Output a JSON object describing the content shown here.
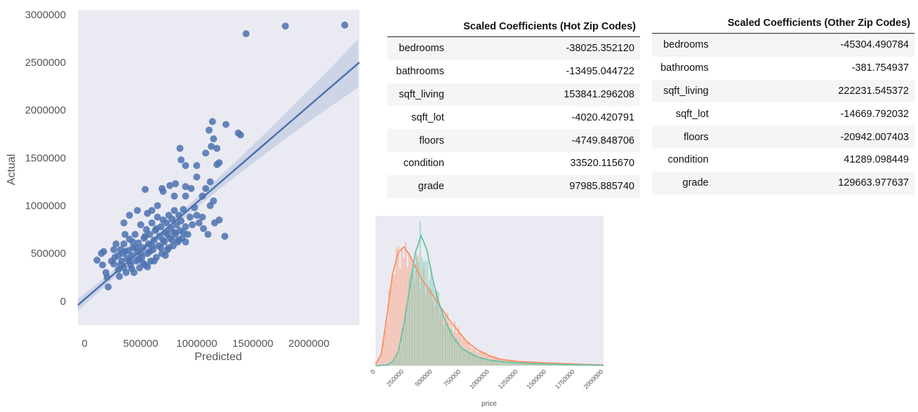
{
  "chart_data": [
    {
      "type": "scatter",
      "xlabel": "Predicted",
      "ylabel": "Actual",
      "xlim": [
        -60000,
        2450000
      ],
      "ylim": [
        -250000,
        3050000
      ],
      "xticks": [
        "0",
        "500000",
        "1000000",
        "1500000",
        "2000000"
      ],
      "yticks": [
        "0",
        "500000",
        "1000000",
        "1500000",
        "2000000",
        "2500000",
        "3000000"
      ],
      "xtick_values": [
        0,
        500000,
        1000000,
        1500000,
        2000000
      ],
      "ytick_values": [
        0,
        500000,
        1000000,
        1500000,
        2000000,
        2500000,
        3000000
      ],
      "regression_line": {
        "x": [
          -60000,
          2450000
        ],
        "y": [
          -40000,
          2500000
        ]
      },
      "points": [
        [
          1440000,
          2800000
        ],
        [
          1790000,
          2880000
        ],
        [
          2320000,
          2890000
        ],
        [
          1140000,
          1880000
        ],
        [
          1260000,
          1850000
        ],
        [
          1370000,
          1760000
        ],
        [
          1390000,
          1740000
        ],
        [
          1110000,
          1790000
        ],
        [
          1150000,
          1700000
        ],
        [
          1180000,
          1600000
        ],
        [
          1130000,
          1620000
        ],
        [
          1180000,
          1430000
        ],
        [
          1200000,
          1450000
        ],
        [
          1000000,
          1420000
        ],
        [
          850000,
          1600000
        ],
        [
          860000,
          1480000
        ],
        [
          1080000,
          1550000
        ],
        [
          900000,
          1420000
        ],
        [
          1000000,
          1300000
        ],
        [
          900000,
          1200000
        ],
        [
          1120000,
          1250000
        ],
        [
          950000,
          1180000
        ],
        [
          1080000,
          1180000
        ],
        [
          540000,
          1170000
        ],
        [
          690000,
          1180000
        ],
        [
          760000,
          1210000
        ],
        [
          810000,
          1230000
        ],
        [
          1050000,
          1100000
        ],
        [
          1150000,
          1050000
        ],
        [
          1200000,
          850000
        ],
        [
          1050000,
          880000
        ],
        [
          900000,
          1100000
        ],
        [
          800000,
          1100000
        ],
        [
          700000,
          1150000
        ],
        [
          650000,
          1000000
        ],
        [
          470000,
          950000
        ],
        [
          400000,
          900000
        ],
        [
          350000,
          820000
        ],
        [
          560000,
          920000
        ],
        [
          600000,
          950000
        ],
        [
          110000,
          430000
        ],
        [
          160000,
          380000
        ],
        [
          150000,
          500000
        ],
        [
          170000,
          520000
        ],
        [
          190000,
          300000
        ],
        [
          200000,
          250000
        ],
        [
          210000,
          150000
        ],
        [
          260000,
          390000
        ],
        [
          260000,
          540000
        ],
        [
          280000,
          600000
        ],
        [
          300000,
          330000
        ],
        [
          310000,
          260000
        ],
        [
          330000,
          420000
        ],
        [
          340000,
          500000
        ],
        [
          350000,
          600000
        ],
        [
          360000,
          700000
        ],
        [
          370000,
          300000
        ],
        [
          380000,
          450000
        ],
        [
          390000,
          530000
        ],
        [
          400000,
          650000
        ],
        [
          410000,
          380000
        ],
        [
          420000,
          480000
        ],
        [
          430000,
          560000
        ],
        [
          440000,
          300000
        ],
        [
          450000,
          700000
        ],
        [
          460000,
          420000
        ],
        [
          470000,
          520000
        ],
        [
          480000,
          610000
        ],
        [
          490000,
          350000
        ],
        [
          500000,
          800000
        ],
        [
          510000,
          460000
        ],
        [
          520000,
          560000
        ],
        [
          530000,
          660000
        ],
        [
          540000,
          380000
        ],
        [
          550000,
          750000
        ],
        [
          560000,
          500000
        ],
        [
          570000,
          600000
        ],
        [
          580000,
          700000
        ],
        [
          590000,
          420000
        ],
        [
          600000,
          820000
        ],
        [
          610000,
          540000
        ],
        [
          620000,
          640000
        ],
        [
          630000,
          740000
        ],
        [
          640000,
          460000
        ],
        [
          650000,
          880000
        ],
        [
          660000,
          580000
        ],
        [
          670000,
          680000
        ],
        [
          680000,
          780000
        ],
        [
          690000,
          500000
        ],
        [
          700000,
          850000
        ],
        [
          710000,
          620000
        ],
        [
          720000,
          720000
        ],
        [
          730000,
          820000
        ],
        [
          740000,
          540000
        ],
        [
          750000,
          900000
        ],
        [
          760000,
          660000
        ],
        [
          770000,
          760000
        ],
        [
          780000,
          860000
        ],
        [
          790000,
          580000
        ],
        [
          800000,
          950000
        ],
        [
          810000,
          700000
        ],
        [
          820000,
          800000
        ],
        [
          830000,
          620000
        ],
        [
          840000,
          900000
        ],
        [
          850000,
          740000
        ],
        [
          860000,
          840000
        ],
        [
          870000,
          660000
        ],
        [
          880000,
          960000
        ],
        [
          900000,
          780000
        ],
        [
          920000,
          700000
        ],
        [
          940000,
          880000
        ],
        [
          960000,
          800000
        ],
        [
          980000,
          980000
        ],
        [
          1000000,
          900000
        ],
        [
          1020000,
          820000
        ],
        [
          1060000,
          760000
        ],
        [
          1100000,
          700000
        ],
        [
          1120000,
          1000000
        ],
        [
          1160000,
          820000
        ],
        [
          1250000,
          680000
        ],
        [
          300000,
          480000
        ],
        [
          320000,
          380000
        ],
        [
          350000,
          350000
        ],
        [
          420000,
          340000
        ],
        [
          520000,
          400000
        ],
        [
          620000,
          420000
        ],
        [
          720000,
          480000
        ],
        [
          430000,
          620000
        ],
        [
          360000,
          520000
        ],
        [
          480000,
          440000
        ],
        [
          580000,
          520000
        ],
        [
          680000,
          560000
        ],
        [
          780000,
          640000
        ],
        [
          880000,
          720000
        ],
        [
          560000,
          360000
        ],
        [
          460000,
          560000
        ],
        [
          540000,
          680000
        ],
        [
          640000,
          760000
        ],
        [
          740000,
          700000
        ],
        [
          840000,
          640000
        ],
        [
          270000,
          460000
        ],
        [
          240000,
          420000
        ],
        [
          320000,
          540000
        ],
        [
          400000,
          420000
        ],
        [
          500000,
          500000
        ],
        [
          600000,
          580000
        ],
        [
          700000,
          640000
        ],
        [
          800000,
          720000
        ],
        [
          900000,
          620000
        ],
        [
          750000,
          560000
        ]
      ]
    },
    {
      "type": "area",
      "xlabel": "price",
      "xlim": [
        0,
        2000000
      ],
      "xticks": [
        "0",
        "250000",
        "500000",
        "750000",
        "1000000",
        "1250000",
        "1500000",
        "1750000",
        "2000000"
      ],
      "xtick_values": [
        0,
        250000,
        500000,
        750000,
        1000000,
        1250000,
        1500000,
        1750000,
        2000000
      ],
      "series": [
        {
          "color": "#fc8d62",
          "kde_x": [
            0,
            50000,
            100000,
            150000,
            200000,
            250000,
            300000,
            350000,
            400000,
            450000,
            500000,
            550000,
            600000,
            650000,
            700000,
            750000,
            800000,
            900000,
            1000000,
            1100000,
            1250000,
            1500000,
            1750000,
            2000000
          ],
          "kde_y": [
            0.01,
            0.08,
            0.35,
            0.65,
            0.8,
            0.84,
            0.78,
            0.7,
            0.62,
            0.56,
            0.5,
            0.44,
            0.38,
            0.32,
            0.27,
            0.22,
            0.17,
            0.11,
            0.07,
            0.045,
            0.03,
            0.02,
            0.012,
            0.005
          ]
        },
        {
          "color": "#66c2a5",
          "kde_x": [
            0,
            100000,
            150000,
            200000,
            250000,
            300000,
            350000,
            400000,
            450000,
            500000,
            550000,
            600000,
            650000,
            700000,
            750000,
            800000,
            900000,
            1000000,
            1100000,
            1250000,
            1500000,
            1750000,
            2000000
          ],
          "kde_y": [
            0.0,
            0.005,
            0.03,
            0.1,
            0.3,
            0.55,
            0.8,
            0.92,
            0.82,
            0.62,
            0.46,
            0.34,
            0.25,
            0.18,
            0.13,
            0.1,
            0.06,
            0.04,
            0.03,
            0.02,
            0.012,
            0.007,
            0.003
          ]
        }
      ]
    }
  ],
  "tables": {
    "hot": {
      "header": "Scaled Coefficients (Hot Zip Codes)",
      "rows": [
        {
          "name": "bedrooms",
          "value": "-38025.352120"
        },
        {
          "name": "bathrooms",
          "value": "-13495.044722"
        },
        {
          "name": "sqft_living",
          "value": "153841.296208"
        },
        {
          "name": "sqft_lot",
          "value": "-4020.420791"
        },
        {
          "name": "floors",
          "value": "-4749.848706"
        },
        {
          "name": "condition",
          "value": "33520.115670"
        },
        {
          "name": "grade",
          "value": "97985.885740"
        }
      ]
    },
    "other": {
      "header": "Scaled Coefficients (Other Zip Codes)",
      "rows": [
        {
          "name": "bedrooms",
          "value": "-45304.490784"
        },
        {
          "name": "bathrooms",
          "value": "-381.754937"
        },
        {
          "name": "sqft_living",
          "value": "222231.545372"
        },
        {
          "name": "sqft_lot",
          "value": "-14669.792032"
        },
        {
          "name": "floors",
          "value": "-20942.007403"
        },
        {
          "name": "condition",
          "value": "41289.098449"
        },
        {
          "name": "grade",
          "value": "129663.977637"
        }
      ]
    }
  },
  "colors": {
    "plot_bg": "#eaeaf2",
    "scatter_point": "#4c72b0",
    "regression_line": "#4c72b0",
    "orange_series": "#fc8d62",
    "green_series": "#66c2a5"
  }
}
